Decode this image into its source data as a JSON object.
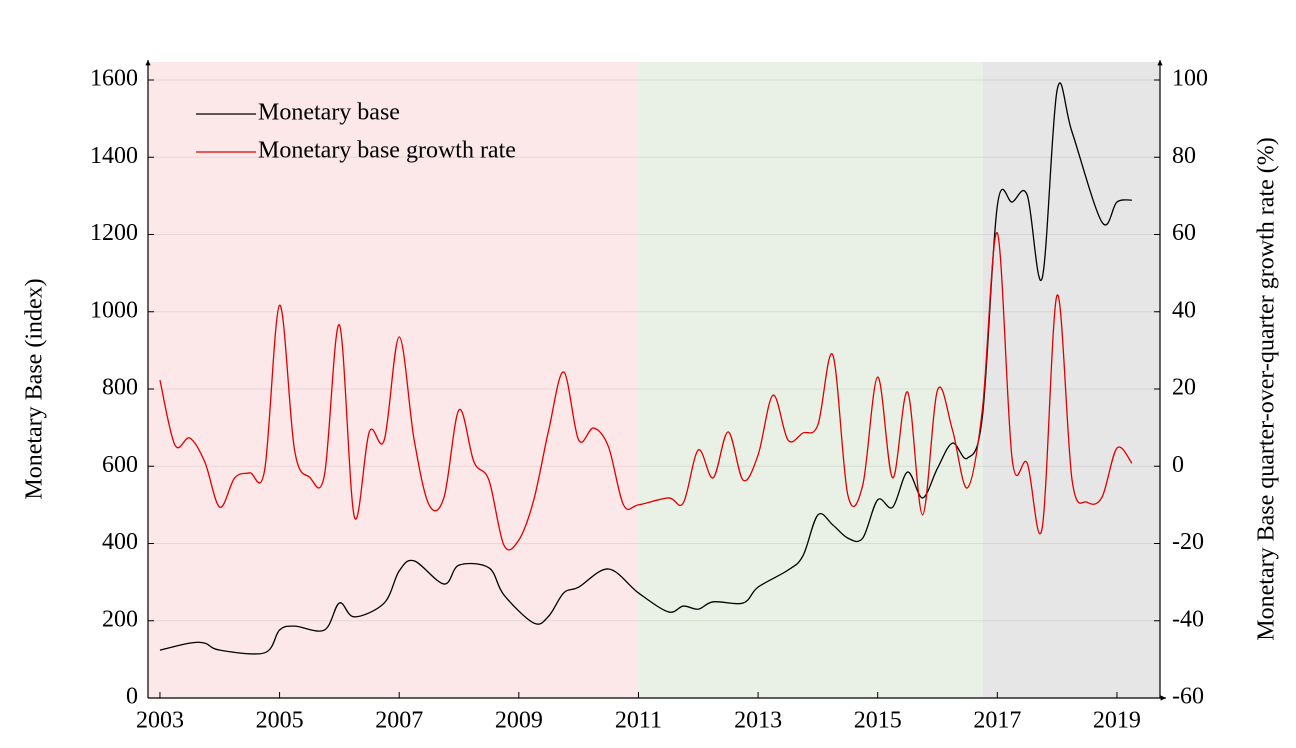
{
  "chart_data": {
    "type": "line",
    "y_label": "Monetary Base (index)",
    "y2_label": "Monetary Base quarter-over-quarter growth rate (%)",
    "xlim": [
      2002.8,
      2019.72
    ],
    "xticks": [
      2003,
      2005,
      2007,
      2009,
      2011,
      2013,
      2015,
      2017,
      2019
    ],
    "ylim": [
      0,
      1600
    ],
    "yticks": [
      0,
      200,
      400,
      600,
      800,
      1000,
      1200,
      1400,
      1600
    ],
    "y2lim": [
      -60,
      100
    ],
    "y2ticks": [
      -60,
      -40,
      -20,
      0,
      20,
      40,
      60,
      80,
      100
    ],
    "grid": true,
    "legend": "top-left",
    "shaded_regions": [
      {
        "start": 2002.8,
        "end": 2011,
        "color": "#fce8e8"
      },
      {
        "start": 2011,
        "end": 2016.75,
        "color": "#e9f1e7"
      },
      {
        "start": 2016.75,
        "end": 2019.72,
        "color": "#e6e6e6"
      }
    ],
    "series": [
      {
        "name": "Monetary base",
        "color": "#000000",
        "x": [
          2003,
          2003.5,
          2003.75,
          2004,
          2004.75,
          2005,
          2005.25,
          2005.75,
          2006,
          2006.25,
          2006.75,
          2007,
          2007.25,
          2007.75,
          2008,
          2008.5,
          2008.75,
          2009.25,
          2009.5,
          2009.75,
          2010,
          2010.5,
          2011,
          2011.5,
          2011.75,
          2012,
          2012.25,
          2012.75,
          2013,
          2013.5,
          2013.75,
          2014,
          2014.25,
          2014.5,
          2014.75,
          2015,
          2015.25,
          2015.5,
          2015.75,
          2016,
          2016.25,
          2016.5,
          2016.75,
          2017,
          2017.25,
          2017.5,
          2017.75,
          2018,
          2018.25,
          2018.75,
          2019,
          2019.25
        ],
        "values": [
          124,
          142,
          142,
          124,
          117,
          176,
          186,
          176,
          246,
          210,
          246,
          329,
          355,
          295,
          344,
          337,
          267,
          194,
          212,
          272,
          287,
          334,
          272,
          223,
          238,
          230,
          249,
          246,
          287,
          331,
          368,
          474,
          448,
          414,
          414,
          513,
          494,
          585,
          518,
          595,
          660,
          621,
          728,
          1274,
          1284,
          1302,
          1087,
          1574,
          1465,
          1232,
          1284,
          1289
        ]
      },
      {
        "name": "Monetary base growth rate",
        "color": "#e00000",
        "axis": "y2",
        "x": [
          2003,
          2003.25,
          2003.5,
          2003.75,
          2004,
          2004.25,
          2004.5,
          2004.75,
          2005,
          2005.25,
          2005.5,
          2005.75,
          2006,
          2006.25,
          2006.5,
          2006.75,
          2007,
          2007.25,
          2007.5,
          2007.75,
          2008,
          2008.25,
          2008.5,
          2008.75,
          2009,
          2009.25,
          2009.5,
          2009.75,
          2010,
          2010.25,
          2010.5,
          2010.75,
          2011,
          2011.5,
          2011.75,
          2012,
          2012.25,
          2012.5,
          2012.75,
          2013,
          2013.25,
          2013.5,
          2013.75,
          2014,
          2014.25,
          2014.5,
          2014.75,
          2015,
          2015.25,
          2015.5,
          2015.75,
          2016,
          2016.25,
          2016.5,
          2016.75,
          2017,
          2017.25,
          2017.5,
          2017.75,
          2018,
          2018.25,
          2018.5,
          2018.75,
          2019,
          2019.25
        ],
        "values": [
          22.3,
          5.5,
          7.3,
          1.1,
          -10.6,
          -3.0,
          -1.7,
          -1.0,
          41.7,
          4.2,
          -2.8,
          -2.3,
          36.6,
          -13.1,
          8.9,
          6.8,
          33.5,
          6.8,
          -10.0,
          -8.0,
          14.6,
          1.1,
          -3.6,
          -20.4,
          -19.1,
          -8.7,
          9.4,
          24.4,
          6.8,
          9.9,
          5.0,
          -10.0,
          -10.0,
          -8.2,
          -9.5,
          4.2,
          -3.0,
          8.9,
          -3.6,
          2.9,
          18.4,
          6.8,
          8.6,
          10.7,
          28.8,
          -7.4,
          -4.9,
          23.1,
          -3.0,
          19.2,
          -12.6,
          19.7,
          9.4,
          -5.6,
          14.6,
          60.4,
          1.6,
          0.8,
          -16.0,
          44.3,
          -3.6,
          -9.3,
          -8.0,
          4.7,
          0.8
        ]
      }
    ]
  }
}
